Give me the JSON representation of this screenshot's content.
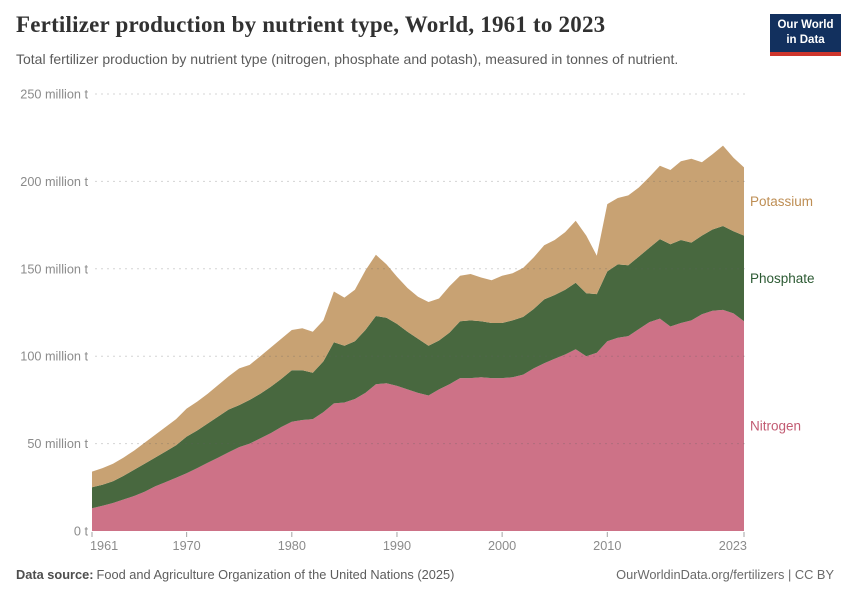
{
  "header": {
    "title": "Fertilizer production by nutrient type, World, 1961 to 2023",
    "subtitle": "Total fertilizer production by nutrient type (nitrogen, phosphate and potash), measured in tonnes of nutrient.",
    "logo": {
      "line1": "Our World",
      "line2": "in Data"
    }
  },
  "footer": {
    "source_label": "Data source:",
    "source_text": "Food and Agriculture Organization of the United Nations (2025)",
    "credit": "OurWorldinData.org/fertilizers | CC BY"
  },
  "chart_data": {
    "type": "area",
    "stacked": true,
    "title": "Fertilizer production by nutrient type, World, 1961 to 2023",
    "unit": "million tonnes of nutrient",
    "x": [
      1961,
      1962,
      1963,
      1964,
      1965,
      1966,
      1967,
      1968,
      1969,
      1970,
      1971,
      1972,
      1973,
      1974,
      1975,
      1976,
      1977,
      1978,
      1979,
      1980,
      1981,
      1982,
      1983,
      1984,
      1985,
      1986,
      1987,
      1988,
      1989,
      1990,
      1991,
      1992,
      1993,
      1994,
      1995,
      1996,
      1997,
      1998,
      1999,
      2000,
      2001,
      2002,
      2003,
      2004,
      2005,
      2006,
      2007,
      2008,
      2009,
      2010,
      2011,
      2012,
      2013,
      2014,
      2015,
      2016,
      2017,
      2018,
      2019,
      2020,
      2021,
      2022,
      2023
    ],
    "series": [
      {
        "name": "Nitrogen",
        "color": "#CD7287",
        "label_color": "#C25B72",
        "values": [
          13,
          14.5,
          16,
          18,
          20,
          22.5,
          25.5,
          28,
          30.5,
          33,
          36,
          39,
          42,
          45,
          48,
          50,
          53,
          56,
          59.5,
          62.5,
          63.5,
          64,
          68,
          73,
          73.5,
          75.5,
          79,
          84,
          84.5,
          83,
          81,
          79,
          77.5,
          81,
          84,
          87.5,
          87.5,
          88,
          87.5,
          87.5,
          88,
          89.5,
          93,
          96,
          98.5,
          101,
          104,
          100,
          102,
          108.5,
          110.5,
          111.5,
          115.5,
          119.5,
          121.5,
          117,
          119,
          120.5,
          124,
          126,
          126.5,
          124.5,
          120
        ]
      },
      {
        "name": "Phosphate",
        "color": "#48683F",
        "label_color": "#2C5A33",
        "values": [
          12,
          12,
          12.5,
          13.5,
          15,
          16,
          16.5,
          17.5,
          18.5,
          21,
          21.5,
          22.5,
          23.5,
          24.5,
          24,
          25,
          25.5,
          26.5,
          27.5,
          29.5,
          28.5,
          26.5,
          29,
          35,
          32.5,
          33,
          36,
          39,
          37.5,
          35.5,
          33,
          31,
          28.5,
          28,
          29.5,
          32.5,
          33,
          32,
          31.5,
          31.5,
          32.5,
          33,
          34,
          36.5,
          36.5,
          37,
          38,
          36,
          33.5,
          40,
          42,
          40.5,
          41.5,
          42.5,
          45.5,
          47,
          47.5,
          44.5,
          45,
          46.5,
          48,
          47,
          49
        ]
      },
      {
        "name": "Potassium",
        "color": "#C8A273",
        "label_color": "#BE8E54",
        "values": [
          9,
          9.5,
          10,
          10.5,
          11,
          12,
          13,
          14,
          15,
          16,
          16.5,
          17,
          18,
          19,
          21,
          20,
          21.5,
          22.5,
          23,
          23,
          24,
          23.5,
          23.5,
          29,
          27.5,
          29.5,
          34,
          35,
          30.5,
          27,
          25,
          24,
          25,
          24,
          26.5,
          26,
          26.5,
          25,
          24.5,
          27,
          27,
          28,
          29.5,
          31,
          31.5,
          33,
          35.5,
          33,
          22,
          38.5,
          38,
          40,
          39.5,
          40.5,
          42,
          42.5,
          45,
          48,
          42,
          43,
          46,
          42,
          39
        ]
      }
    ],
    "ylim": [
      0,
      250
    ],
    "yticks": [
      {
        "value": 0,
        "label": "0 t"
      },
      {
        "value": 50,
        "label": "50 million t"
      },
      {
        "value": 100,
        "label": "100 million t"
      },
      {
        "value": 150,
        "label": "150 million t"
      },
      {
        "value": 200,
        "label": "200 million t"
      },
      {
        "value": 250,
        "label": "250 million t"
      }
    ],
    "xticks": [
      1961,
      1970,
      1980,
      1990,
      2000,
      2010,
      2023
    ],
    "grid": "dashed-horizontal",
    "legend_position": "right-of-areas"
  }
}
